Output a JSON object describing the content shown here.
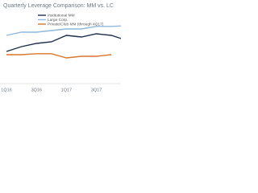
{
  "chart_data": {
    "type": "line",
    "title": "Quarterly Leverage Comparison: MM vs. LC",
    "categories": [
      "1Q16",
      null,
      "3Q16",
      null,
      "1Q17",
      null,
      "3Q17",
      null,
      null
    ],
    "series": [
      {
        "name": "Institutional MM",
        "color": "#1f2d4e",
        "values": [
          4.9,
          5.05,
          5.15,
          5.2,
          5.4,
          5.35,
          5.45,
          5.4,
          5.25
        ]
      },
      {
        "name": "Large Corp.",
        "color": "#8fb8de",
        "values": [
          5.4,
          5.5,
          5.5,
          5.55,
          5.6,
          5.6,
          5.68,
          5.68,
          5.7
        ]
      },
      {
        "name": "Private/Club MM (through 4Q17)",
        "color": "#d9772b",
        "values": [
          4.8,
          4.8,
          4.83,
          4.83,
          4.7,
          4.75,
          4.75,
          4.8,
          null
        ]
      }
    ],
    "ylim": [
      4,
      6
    ]
  }
}
